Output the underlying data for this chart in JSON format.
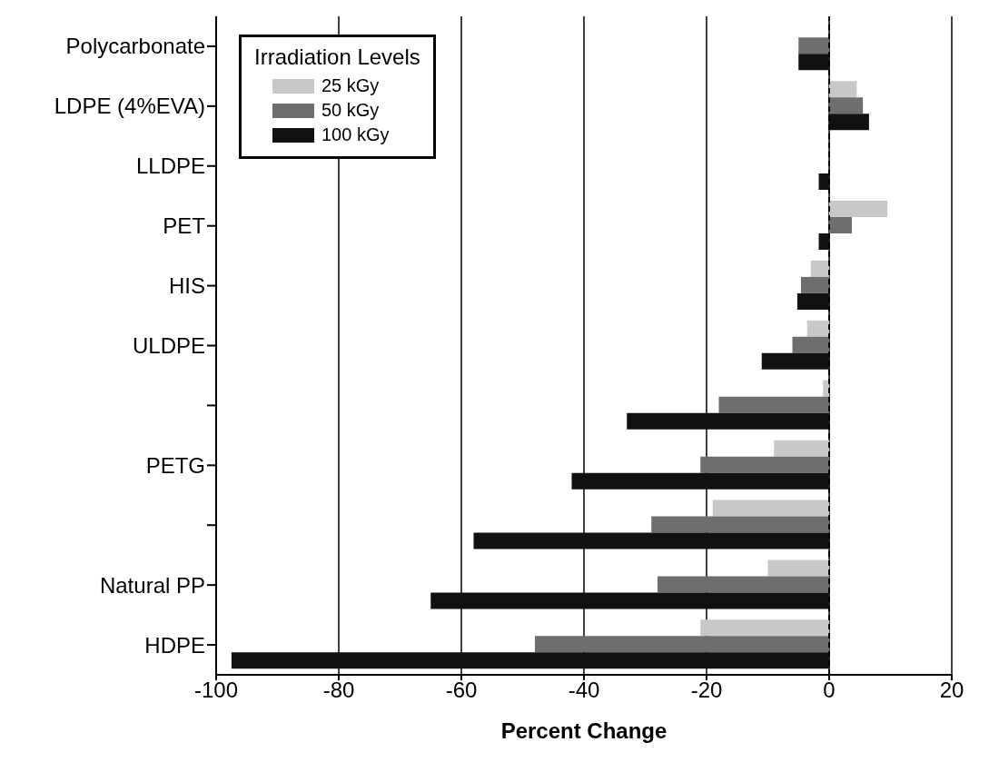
{
  "chart_data": {
    "type": "bar",
    "orientation": "horizontal",
    "xlabel": "Percent Change",
    "legend_title": "Irradiation Levels",
    "legend": "top left",
    "grid": "x",
    "categories": [
      "Polycarbonate",
      "LDPE (4%EVA)",
      "LLDPE",
      "PET",
      "HIS",
      "ULDPE",
      null,
      "PETG",
      null,
      "Natural PP",
      "HDPE"
    ],
    "series": [
      {
        "name": "25 kGy",
        "color": "#c8c8c8",
        "values": [
          null,
          4.5,
          null,
          9.5,
          -3,
          -3.6,
          -1,
          -9,
          -19,
          -10,
          -21
        ]
      },
      {
        "name": "50 kGy",
        "color": "#6e6e6e",
        "values": [
          -5,
          5.5,
          null,
          3.7,
          -4.6,
          -6,
          -18,
          -21,
          -29,
          -28,
          -48
        ]
      },
      {
        "name": "100 kGy",
        "color": "#111111",
        "values": [
          -5,
          6.5,
          -1.7,
          -1.7,
          -5.2,
          -11,
          -33,
          -42,
          -58,
          -65,
          -97.5
        ]
      }
    ],
    "xlim": [
      -100,
      20
    ],
    "xticks": [
      -100,
      -80,
      -60,
      -40,
      -20,
      0,
      20
    ],
    "ref_lines": [
      {
        "axis": "x",
        "value": 0,
        "line_style": "dashed",
        "color": "#000000"
      }
    ]
  }
}
